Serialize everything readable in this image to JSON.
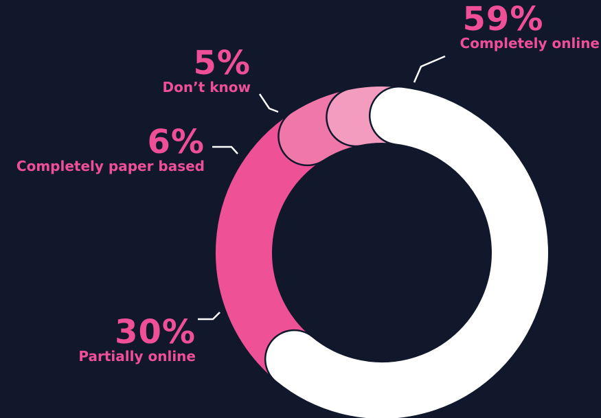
{
  "chart_data": {
    "type": "pie",
    "series": [
      {
        "name": "Completely online",
        "label": "59%",
        "value": 59,
        "color": "#ffffff"
      },
      {
        "name": "Partially online",
        "label": "30%",
        "value": 30,
        "color": "#ef5196"
      },
      {
        "name": "Completely paper based",
        "label": "6%",
        "value": 6,
        "color": "#f078a9"
      },
      {
        "name": "Don’t know",
        "label": "5%",
        "value": 5,
        "color": "#f39cbf"
      }
    ],
    "background": "#11182c",
    "text_color": "#ef4f96"
  }
}
